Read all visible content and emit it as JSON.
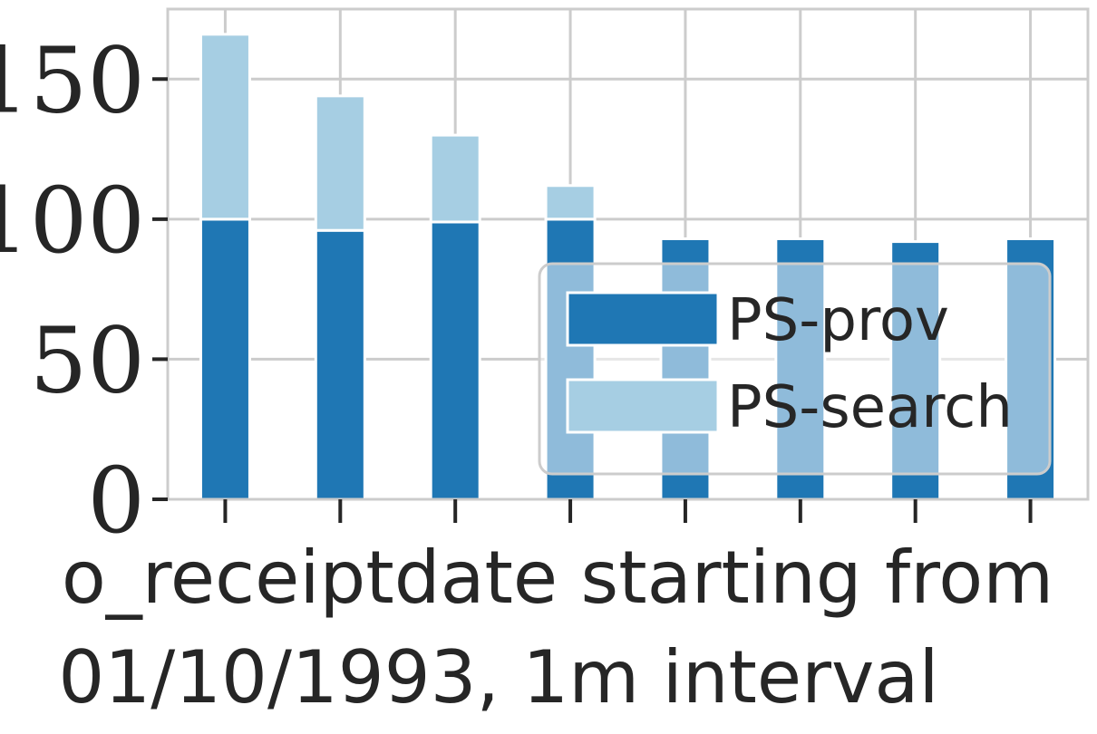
{
  "chart_data": {
    "type": "bar",
    "stacked": true,
    "categories": [
      "",
      "",
      "",
      "",
      "",
      "",
      "",
      ""
    ],
    "series": [
      {
        "name": "PS-prov",
        "values": [
          100,
          96,
          99,
          100,
          93,
          93,
          92,
          93
        ]
      },
      {
        "name": "PS-search",
        "values": [
          66,
          48,
          31,
          12,
          0,
          0,
          0,
          0
        ]
      }
    ],
    "colors": {
      "PS-prov": "#1f77b4",
      "PS-search": "#a6cee3"
    },
    "xlabel": "o_receiptdate starting from 01/10/1993, 1m interval",
    "xlabel_lines": [
      "o_receiptdate starting from",
      "01/10/1993, 1m interval"
    ],
    "ylabel": "",
    "ylim": [
      0,
      175
    ],
    "yticks": [
      0,
      50,
      100,
      150
    ],
    "grid": true,
    "legend_position": "lower-right"
  }
}
